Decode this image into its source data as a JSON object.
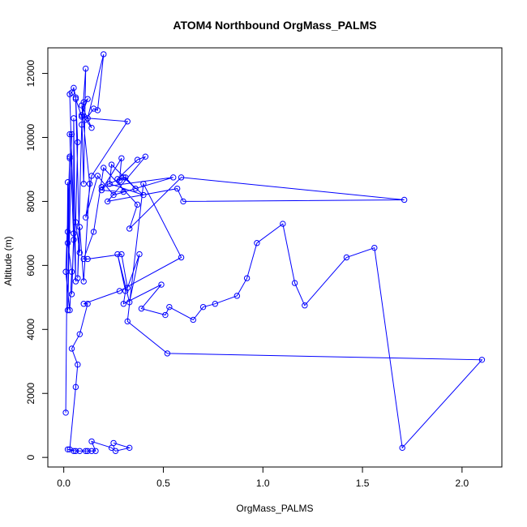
{
  "chart_data": {
    "type": "line",
    "title": "ATOM4 Northbound OrgMass_PALMS",
    "xlabel": "OrgMass_PALMS",
    "ylabel": "Altitude (m)",
    "xlim": [
      -0.08,
      2.2
    ],
    "ylim": [
      -300,
      12800
    ],
    "x_ticks": [
      "0.0",
      "0.5",
      "1.0",
      "1.5",
      "2.0"
    ],
    "y_ticks": [
      "0",
      "2000",
      "4000",
      "6000",
      "8000",
      "10000",
      "12000"
    ],
    "grid": false,
    "series": [
      {
        "color": "#0000ff",
        "markers": "open-circle",
        "points": [
          [
            0.01,
            1400
          ],
          [
            0.02,
            8600
          ],
          [
            0.02,
            7050
          ],
          [
            0.03,
            9400
          ],
          [
            0.02,
            6700
          ],
          [
            0.04,
            5800
          ],
          [
            0.03,
            4600
          ],
          [
            0.01,
            5800
          ],
          [
            0.03,
            9350
          ],
          [
            0.02,
            4600
          ],
          [
            0.04,
            10100
          ],
          [
            0.03,
            10100
          ],
          [
            0.05,
            6800
          ],
          [
            0.04,
            5100
          ],
          [
            0.05,
            7000
          ],
          [
            0.05,
            10600
          ],
          [
            0.06,
            5500
          ],
          [
            0.03,
            11350
          ],
          [
            0.04,
            11400
          ],
          [
            0.05,
            11550
          ],
          [
            0.06,
            11250
          ],
          [
            0.07,
            9850
          ],
          [
            0.06,
            7350
          ],
          [
            0.08,
            6400
          ],
          [
            0.06,
            11200
          ],
          [
            0.09,
            10650
          ],
          [
            0.1,
            11100
          ],
          [
            0.12,
            11200
          ],
          [
            0.09,
            10700
          ],
          [
            0.1,
            8550
          ],
          [
            0.11,
            12150
          ],
          [
            0.09,
            10400
          ],
          [
            0.07,
            5600
          ],
          [
            0.08,
            7200
          ],
          [
            0.1,
            5500
          ],
          [
            0.13,
            8550
          ],
          [
            0.09,
            11000
          ],
          [
            0.14,
            10300
          ],
          [
            0.11,
            10550
          ],
          [
            0.15,
            10900
          ],
          [
            0.17,
            10850
          ],
          [
            0.2,
            12600
          ],
          [
            0.12,
            10600
          ],
          [
            0.32,
            10500
          ],
          [
            0.14,
            8800
          ],
          [
            0.11,
            7500
          ],
          [
            0.17,
            8800
          ],
          [
            0.25,
            8200
          ],
          [
            0.55,
            8750
          ],
          [
            0.19,
            8450
          ],
          [
            0.3,
            8750
          ],
          [
            0.4,
            8200
          ],
          [
            0.23,
            8550
          ],
          [
            0.24,
            9150
          ],
          [
            0.36,
            8400
          ],
          [
            0.31,
            8750
          ],
          [
            0.28,
            8650
          ],
          [
            0.29,
            9350
          ],
          [
            0.19,
            8350
          ],
          [
            0.3,
            8300
          ],
          [
            0.27,
            8700
          ],
          [
            0.37,
            9300
          ],
          [
            0.41,
            9400
          ],
          [
            0.22,
            8000
          ],
          [
            0.57,
            8400
          ],
          [
            0.6,
            8000
          ],
          [
            1.71,
            8050
          ],
          [
            0.59,
            8750
          ],
          [
            0.33,
            7150
          ],
          [
            0.37,
            7900
          ],
          [
            0.2,
            9050
          ],
          [
            0.15,
            7050
          ],
          [
            0.1,
            6200
          ],
          [
            0.12,
            6200
          ],
          [
            0.29,
            6350
          ],
          [
            0.32,
            5300
          ],
          [
            0.38,
            6350
          ],
          [
            0.33,
            4850
          ],
          [
            0.27,
            6350
          ],
          [
            0.31,
            5200
          ],
          [
            0.3,
            4800
          ],
          [
            0.49,
            5400
          ],
          [
            0.39,
            4650
          ],
          [
            0.51,
            4450
          ],
          [
            0.53,
            4700
          ],
          [
            0.65,
            4300
          ],
          [
            0.7,
            4700
          ],
          [
            0.76,
            4800
          ],
          [
            0.87,
            5050
          ],
          [
            0.92,
            5600
          ],
          [
            0.97,
            6700
          ],
          [
            1.1,
            7300
          ],
          [
            1.16,
            5450
          ],
          [
            1.21,
            4750
          ],
          [
            1.42,
            6250
          ],
          [
            1.56,
            6550
          ],
          [
            1.7,
            300
          ],
          [
            2.1,
            3050
          ],
          [
            0.52,
            3250
          ],
          [
            0.32,
            4250
          ],
          [
            0.4,
            8550
          ],
          [
            0.59,
            6250
          ],
          [
            0.28,
            5200
          ],
          [
            0.1,
            4800
          ],
          [
            0.12,
            4800
          ],
          [
            0.08,
            3850
          ],
          [
            0.04,
            3400
          ],
          [
            0.07,
            2900
          ],
          [
            0.06,
            2200
          ],
          [
            0.03,
            250
          ],
          [
            0.05,
            200
          ],
          [
            0.02,
            250
          ],
          [
            0.06,
            200
          ],
          [
            0.08,
            200
          ],
          [
            0.11,
            200
          ],
          [
            0.12,
            200
          ],
          [
            0.14,
            200
          ],
          [
            0.16,
            200
          ],
          [
            0.14,
            500
          ],
          [
            0.24,
            300
          ],
          [
            0.26,
            200
          ],
          [
            0.33,
            300
          ],
          [
            0.25,
            450
          ]
        ]
      }
    ]
  }
}
